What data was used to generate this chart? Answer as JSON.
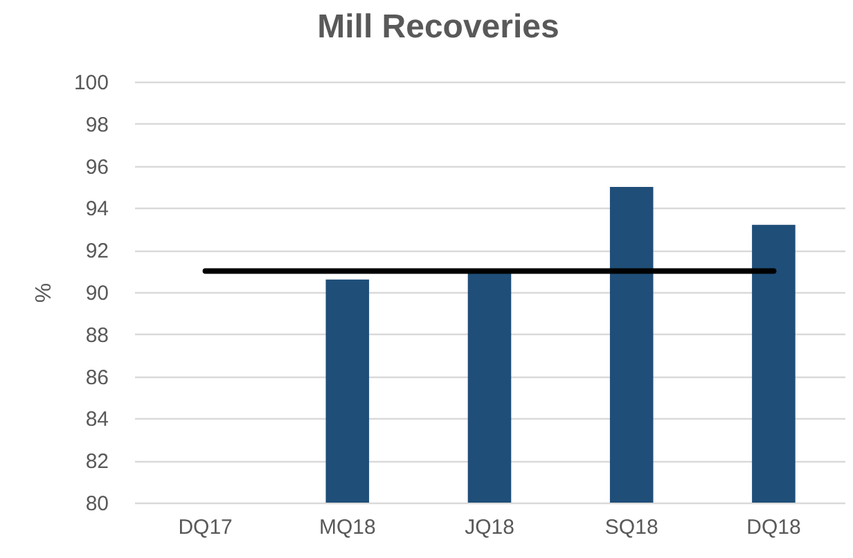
{
  "chart_data": {
    "type": "bar",
    "title": "Mill Recoveries",
    "ylabel": "%",
    "categories": [
      "DQ17",
      "MQ18",
      "JQ18",
      "SQ18",
      "DQ18"
    ],
    "series": [
      {
        "color": "#1f4e79",
        "values": [
          null,
          90.6,
          91.0,
          95.0,
          93.2
        ]
      },
      {
        "type": "line",
        "color": "#000000",
        "values": [
          91.0,
          91.0,
          91.0,
          91.0,
          91.0
        ]
      }
    ],
    "ylim": [
      80,
      100
    ],
    "yticks": [
      80,
      82,
      84,
      86,
      88,
      90,
      92,
      94,
      96,
      98,
      100
    ],
    "grid": "y"
  }
}
